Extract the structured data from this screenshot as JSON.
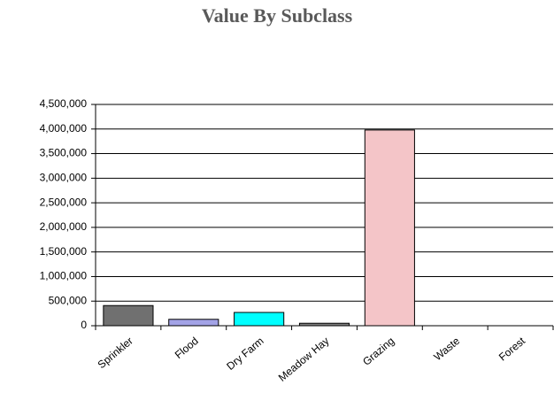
{
  "chart_data": {
    "type": "bar",
    "title": "Value By Subclass",
    "categories": [
      "Sprinkler",
      "Flood",
      "Dry Farm",
      "Meadow Hay",
      "Grazing",
      "Waste",
      "Forest"
    ],
    "values": [
      410000,
      130000,
      270000,
      50000,
      3980000,
      0,
      0
    ],
    "colors": [
      "#707070",
      "#a3a3e6",
      "#00ffff",
      "#7f7f7f",
      "#f4c5c8",
      "#ffffff",
      "#ffffff"
    ],
    "ylim": [
      0,
      4500000
    ],
    "yticks": [
      0,
      {
        "value": 500000,
        "label": "500,000"
      },
      {
        "value": 1000000,
        "label": "1,000,000"
      },
      {
        "value": 1500000,
        "label": "1,500,000"
      },
      {
        "value": 2000000,
        "label": "2,000,000"
      },
      {
        "value": 2500000,
        "label": "2,500,000"
      },
      {
        "value": 3000000,
        "label": "3,000,000"
      },
      {
        "value": 3500000,
        "label": "3,500,000"
      },
      {
        "value": 4000000,
        "label": "4,000,000"
      },
      {
        "value": 4500000,
        "label": "4,500,000"
      }
    ],
    "grid": true
  }
}
